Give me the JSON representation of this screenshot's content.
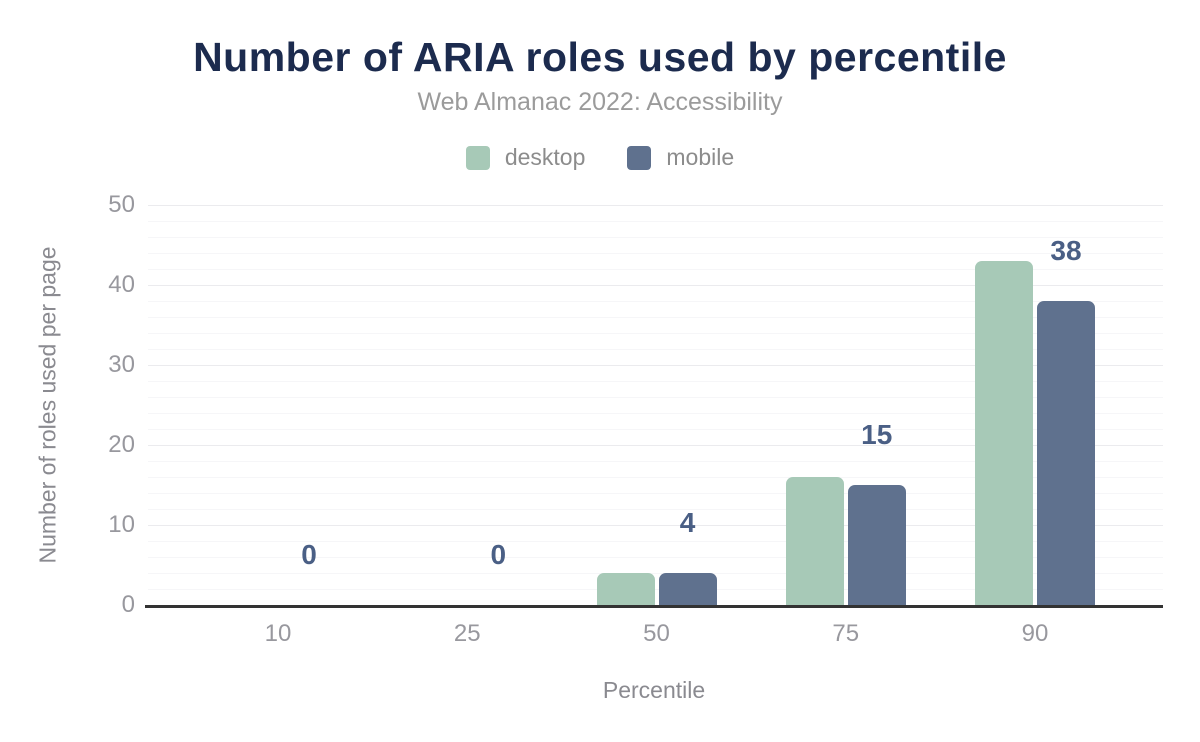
{
  "chart_data": {
    "type": "bar",
    "title": "Number of ARIA roles used by percentile",
    "subtitle": "Web Almanac 2022: Accessibility",
    "xlabel": "Percentile",
    "ylabel": "Number of roles used per page",
    "categories": [
      "10",
      "25",
      "50",
      "75",
      "90"
    ],
    "series": [
      {
        "name": "desktop",
        "color": "#a7c9b7",
        "values": [
          0,
          0,
          4,
          16,
          43
        ]
      },
      {
        "name": "mobile",
        "color": "#5f718e",
        "values": [
          0,
          0,
          4,
          15,
          38
        ]
      }
    ],
    "data_labels": {
      "series": "mobile",
      "values": [
        "0",
        "0",
        "4",
        "15",
        "38"
      ],
      "color": "#4a5f85"
    },
    "ylim": [
      0,
      50
    ],
    "yticks": [
      0,
      10,
      20,
      30,
      40,
      50
    ],
    "minor_grid_step": 2,
    "grid": true,
    "legend_position": "top"
  },
  "style": {
    "title_color": "#1c2b4e",
    "subtitle_color": "#9b9b9b",
    "legend_text_color": "#8c8c8c",
    "axis_line_color": "#333333",
    "tick_label_color": "#98989e",
    "axis_title_color": "#8a8a90",
    "major_grid_color": "#ebebee",
    "minor_grid_color": "#f6f6f8",
    "background": "#ffffff"
  }
}
